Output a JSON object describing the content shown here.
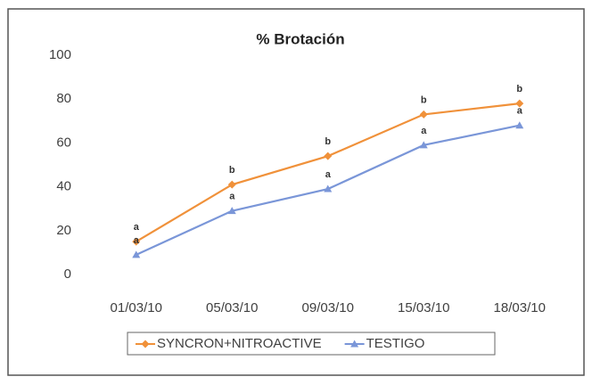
{
  "chart_data": {
    "type": "line",
    "title": "% Brotación",
    "categories": [
      "01/03/10",
      "05/03/10",
      "09/03/10",
      "15/03/10",
      "18/03/10"
    ],
    "series": [
      {
        "name": "SYNCRON+NITROACTIVE",
        "color": "#f0913a",
        "marker": "diamond",
        "values": [
          15,
          41,
          54,
          73,
          78
        ],
        "point_labels": [
          "a",
          "b",
          "b",
          "b",
          "b"
        ]
      },
      {
        "name": "TESTIGO",
        "color": "#7a96d8",
        "marker": "triangle",
        "values": [
          9,
          29,
          39,
          59,
          68
        ],
        "point_labels": [
          "a",
          "a",
          "a",
          "a",
          "a"
        ]
      }
    ],
    "ylim": [
      0,
      100
    ],
    "yticks": [
      0,
      20,
      40,
      60,
      80,
      100
    ],
    "grid": false,
    "legend": "bottom"
  }
}
